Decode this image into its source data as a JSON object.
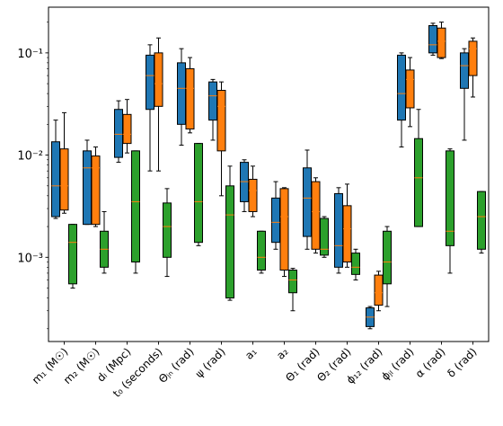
{
  "chart_data": {
    "type": "box",
    "yscale": "log",
    "ylim": [
      0.00015,
      0.28
    ],
    "y_ticks": [
      {
        "value": 0.001,
        "label": "10⁻³"
      },
      {
        "value": 0.01,
        "label": "10⁻²"
      },
      {
        "value": 0.1,
        "label": "10⁻¹"
      }
    ],
    "categories": [
      "m₁ (M☉)",
      "m₂ (M☉)",
      "dₗ (Mpc)",
      "t₀ (seconds)",
      "Θⱼₙ (rad)",
      "ψ (rad)",
      "a₁",
      "a₂",
      "Θ₁ (rad)",
      "Θ₂ (rad)",
      "ϕ₁₂ (rad)",
      "ϕⱼₗ (rad)",
      "α (rad)",
      "δ (rad)"
    ],
    "series": [
      {
        "color": "#1f77b4",
        "boxes": [
          {
            "whislo": 0.0024,
            "q1": 0.0025,
            "med": 0.005,
            "q3": 0.0135,
            "whishi": 0.022
          },
          {
            "whislo": 0.0021,
            "q1": 0.0021,
            "med": 0.0075,
            "q3": 0.011,
            "whishi": 0.014
          },
          {
            "whislo": 0.0085,
            "q1": 0.0095,
            "med": 0.016,
            "q3": 0.028,
            "whishi": 0.034
          },
          {
            "whislo": 0.007,
            "q1": 0.028,
            "med": 0.06,
            "q3": 0.095,
            "whishi": 0.12
          },
          {
            "whislo": 0.0125,
            "q1": 0.02,
            "med": 0.045,
            "q3": 0.08,
            "whishi": 0.11
          },
          {
            "whislo": 0.014,
            "q1": 0.022,
            "med": 0.038,
            "q3": 0.052,
            "whishi": 0.055
          },
          {
            "whislo": 0.0028,
            "q1": 0.0035,
            "med": 0.0055,
            "q3": 0.0085,
            "whishi": 0.009
          },
          {
            "whislo": 0.0012,
            "q1": 0.0014,
            "med": 0.0022,
            "q3": 0.0038,
            "whishi": 0.0055
          },
          {
            "whislo": 0.0012,
            "q1": 0.0016,
            "med": 0.0038,
            "q3": 0.0075,
            "whishi": 0.0112
          },
          {
            "whislo": 0.0007,
            "q1": 0.0008,
            "med": 0.0013,
            "q3": 0.0042,
            "whishi": 0.0048
          },
          {
            "whislo": 0.0002,
            "q1": 0.00021,
            "med": 0.00026,
            "q3": 0.00032,
            "whishi": 0.00033
          },
          {
            "whislo": 0.012,
            "q1": 0.022,
            "med": 0.04,
            "q3": 0.095,
            "whishi": 0.1
          },
          {
            "whislo": 0.095,
            "q1": 0.1,
            "med": 0.12,
            "q3": 0.185,
            "whishi": 0.195
          },
          {
            "whislo": 0.014,
            "q1": 0.045,
            "med": 0.075,
            "q3": 0.1,
            "whishi": 0.11
          }
        ]
      },
      {
        "color": "#ff7f0e",
        "boxes": [
          {
            "whislo": 0.0027,
            "q1": 0.0029,
            "med": 0.005,
            "q3": 0.0115,
            "whishi": 0.026
          },
          {
            "whislo": 0.002,
            "q1": 0.0021,
            "med": 0.0075,
            "q3": 0.0098,
            "whishi": 0.012
          },
          {
            "whislo": 0.0105,
            "q1": 0.013,
            "med": 0.016,
            "q3": 0.025,
            "whishi": 0.035
          },
          {
            "whislo": 0.007,
            "q1": 0.03,
            "med": 0.05,
            "q3": 0.1,
            "whishi": 0.14
          },
          {
            "whislo": 0.0165,
            "q1": 0.018,
            "med": 0.045,
            "q3": 0.07,
            "whishi": 0.09
          },
          {
            "whislo": 0.004,
            "q1": 0.011,
            "med": 0.03,
            "q3": 0.043,
            "whishi": 0.052
          },
          {
            "whislo": 0.0025,
            "q1": 0.0028,
            "med": 0.0045,
            "q3": 0.0058,
            "whishi": 0.0078
          },
          {
            "whislo": 0.00065,
            "q1": 0.00075,
            "med": 0.0025,
            "q3": 0.0047,
            "whishi": 0.0048
          },
          {
            "whislo": 0.0011,
            "q1": 0.0012,
            "med": 0.0028,
            "q3": 0.0055,
            "whishi": 0.006
          },
          {
            "whislo": 0.0008,
            "q1": 0.0009,
            "med": 0.0019,
            "q3": 0.0032,
            "whishi": 0.0052
          },
          {
            "whislo": 0.0003,
            "q1": 0.00034,
            "med": 0.00045,
            "q3": 0.00067,
            "whishi": 0.00073
          },
          {
            "whislo": 0.019,
            "q1": 0.029,
            "med": 0.055,
            "q3": 0.068,
            "whishi": 0.09
          },
          {
            "whislo": 0.088,
            "q1": 0.09,
            "med": 0.13,
            "q3": 0.175,
            "whishi": 0.2
          },
          {
            "whislo": 0.037,
            "q1": 0.06,
            "med": 0.11,
            "q3": 0.13,
            "whishi": 0.14
          }
        ]
      },
      {
        "color": "#2ca02c",
        "boxes": [
          {
            "whislo": 0.0005,
            "q1": 0.00055,
            "med": 0.0014,
            "q3": 0.0021,
            "whishi": 0.0021
          },
          {
            "whislo": 0.0007,
            "q1": 0.0008,
            "med": 0.0012,
            "q3": 0.0018,
            "whishi": 0.0028
          },
          {
            "whislo": 0.0007,
            "q1": 0.0009,
            "med": 0.0035,
            "q3": 0.011,
            "whishi": 0.011
          },
          {
            "whislo": 0.00065,
            "q1": 0.001,
            "med": 0.002,
            "q3": 0.0034,
            "whishi": 0.0047
          },
          {
            "whislo": 0.0013,
            "q1": 0.0014,
            "med": 0.0035,
            "q3": 0.013,
            "whishi": 0.013
          },
          {
            "whislo": 0.00038,
            "q1": 0.0004,
            "med": 0.0026,
            "q3": 0.005,
            "whishi": 0.0078
          },
          {
            "whislo": 0.0007,
            "q1": 0.00075,
            "med": 0.001,
            "q3": 0.0018,
            "whishi": 0.0018
          },
          {
            "whislo": 0.0003,
            "q1": 0.00045,
            "med": 0.0006,
            "q3": 0.00075,
            "whishi": 0.00078
          },
          {
            "whislo": 0.001,
            "q1": 0.00105,
            "med": 0.0012,
            "q3": 0.0024,
            "whishi": 0.0025
          },
          {
            "whislo": 0.0006,
            "q1": 0.00068,
            "med": 0.0008,
            "q3": 0.0011,
            "whishi": 0.0012
          },
          {
            "whislo": 0.00033,
            "q1": 0.00055,
            "med": 0.0009,
            "q3": 0.0018,
            "whishi": 0.002
          },
          {
            "whislo": 0.002,
            "q1": 0.002,
            "med": 0.006,
            "q3": 0.0145,
            "whishi": 0.028
          },
          {
            "whislo": 0.0007,
            "q1": 0.0013,
            "med": 0.0018,
            "q3": 0.011,
            "whishi": 0.0115
          },
          {
            "whislo": 0.0011,
            "q1": 0.0012,
            "med": 0.0025,
            "q3": 0.0044,
            "whishi": 0.0044
          }
        ]
      }
    ],
    "median_color": "#ff7f0e",
    "title": "",
    "xlabel": "",
    "ylabel": "",
    "grid": false,
    "legend": "none"
  }
}
